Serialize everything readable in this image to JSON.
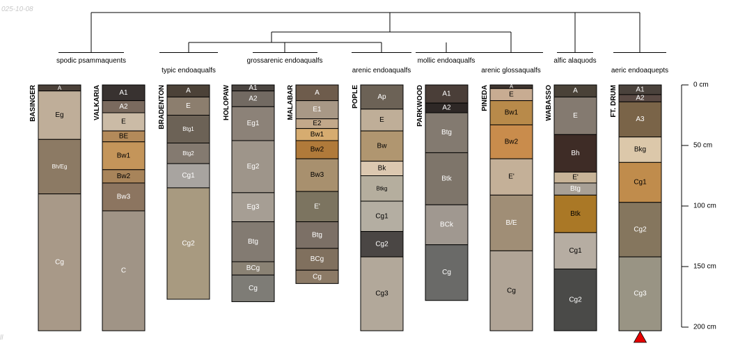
{
  "date_label": "025-10-08",
  "corner_mark": "ll",
  "chart_data": {
    "type": "soil-profile-dendrogram",
    "depth_axis": {
      "unit": "cm",
      "max": 200,
      "ticks": [
        0,
        50,
        100,
        150,
        200
      ],
      "tick_labels": [
        "0 cm",
        "50 cm",
        "100 cm",
        "150 cm",
        "200 cm"
      ]
    },
    "taxa": [
      {
        "label": "spodic psammaquents"
      },
      {
        "label": "typic endoaqualfs"
      },
      {
        "label": "grossarenic endoaqualfs"
      },
      {
        "label": "arenic endoaqualfs"
      },
      {
        "label": "mollic endoaqualfs"
      },
      {
        "label": "arenic glossaqualfs"
      },
      {
        "label": "alfic alaquods"
      },
      {
        "label": "aeric endoaquepts"
      }
    ],
    "profiles": [
      {
        "name": "BASINGER",
        "horizons": [
          {
            "name": "A",
            "top": 0,
            "bottom": 5,
            "color": "#4a4038",
            "text": "#ffffff",
            "small": true
          },
          {
            "name": "Eg",
            "top": 5,
            "bottom": 45,
            "color": "#bfae99",
            "text": "#000000"
          },
          {
            "name": "Bh/Eg",
            "top": 45,
            "bottom": 90,
            "color": "#8c7a64",
            "text": "#ffffff",
            "small": true
          },
          {
            "name": "Cg",
            "top": 90,
            "bottom": 203,
            "color": "#a89988",
            "text": "#ffffff"
          }
        ]
      },
      {
        "name": "VALKARIA",
        "horizons": [
          {
            "name": "A1",
            "top": 0,
            "bottom": 13,
            "color": "#383230",
            "text": "#ffffff"
          },
          {
            "name": "A2",
            "top": 13,
            "bottom": 23,
            "color": "#7a6a5e",
            "text": "#ffffff"
          },
          {
            "name": "E",
            "top": 23,
            "bottom": 38,
            "color": "#cbbba6",
            "text": "#000000"
          },
          {
            "name": "BE",
            "top": 38,
            "bottom": 47,
            "color": "#b38a5a",
            "text": "#000000"
          },
          {
            "name": "Bw1",
            "top": 47,
            "bottom": 70,
            "color": "#c4955a",
            "text": "#000000"
          },
          {
            "name": "Bw2",
            "top": 70,
            "bottom": 81,
            "color": "#a8845a",
            "text": "#000000"
          },
          {
            "name": "Bw3",
            "top": 81,
            "bottom": 104,
            "color": "#8c7560",
            "text": "#ffffff"
          },
          {
            "name": "C",
            "top": 104,
            "bottom": 203,
            "color": "#a09486",
            "text": "#ffffff"
          }
        ]
      },
      {
        "name": "BRADENTON",
        "horizons": [
          {
            "name": "A",
            "top": 0,
            "bottom": 10,
            "color": "#4c4238",
            "text": "#ffffff"
          },
          {
            "name": "E",
            "top": 10,
            "bottom": 25,
            "color": "#8c7e6e",
            "text": "#ffffff"
          },
          {
            "name": "Btg1",
            "top": 25,
            "bottom": 48,
            "color": "#6c6256",
            "text": "#ffffff",
            "small": true
          },
          {
            "name": "Btg2",
            "top": 48,
            "bottom": 65,
            "color": "#847a70",
            "text": "#ffffff",
            "small": true
          },
          {
            "name": "Cg1",
            "top": 65,
            "bottom": 85,
            "color": "#a8a4a0",
            "text": "#ffffff"
          },
          {
            "name": "Cg2",
            "top": 85,
            "bottom": 177,
            "color": "#a89a80",
            "text": "#ffffff"
          }
        ]
      },
      {
        "name": "HOLOPAW",
        "horizons": [
          {
            "name": "A1",
            "top": 0,
            "bottom": 5,
            "color": "#4a4440",
            "text": "#ffffff"
          },
          {
            "name": "A2",
            "top": 5,
            "bottom": 18,
            "color": "#726a62",
            "text": "#ffffff"
          },
          {
            "name": "Eg1",
            "top": 18,
            "bottom": 46,
            "color": "#8c8278",
            "text": "#ffffff"
          },
          {
            "name": "Eg2",
            "top": 46,
            "bottom": 89,
            "color": "#9e958a",
            "text": "#ffffff"
          },
          {
            "name": "Eg3",
            "top": 89,
            "bottom": 113,
            "color": "#a69e94",
            "text": "#ffffff"
          },
          {
            "name": "Btg",
            "top": 113,
            "bottom": 146,
            "color": "#837b72",
            "text": "#ffffff"
          },
          {
            "name": "BCg",
            "top": 146,
            "bottom": 157,
            "color": "#8a8274",
            "text": "#ffffff"
          },
          {
            "name": "Cg",
            "top": 157,
            "bottom": 179,
            "color": "#7e7c76",
            "text": "#ffffff"
          }
        ]
      },
      {
        "name": "MALABAR",
        "horizons": [
          {
            "name": "A",
            "top": 0,
            "bottom": 13,
            "color": "#6e5c4c",
            "text": "#ffffff"
          },
          {
            "name": "E1",
            "top": 13,
            "bottom": 28,
            "color": "#a89886",
            "text": "#ffffff"
          },
          {
            "name": "E2",
            "top": 28,
            "bottom": 36,
            "color": "#c2a88a",
            "text": "#000000"
          },
          {
            "name": "Bw1",
            "top": 36,
            "bottom": 46,
            "color": "#d6ac70",
            "text": "#000000"
          },
          {
            "name": "Bw2",
            "top": 46,
            "bottom": 61,
            "color": "#b07a3a",
            "text": "#000000"
          },
          {
            "name": "Bw3",
            "top": 61,
            "bottom": 88,
            "color": "#a8906e",
            "text": "#000000"
          },
          {
            "name": "E'",
            "top": 88,
            "bottom": 113,
            "color": "#7c7460",
            "text": "#ffffff"
          },
          {
            "name": "Btg",
            "top": 113,
            "bottom": 135,
            "color": "#7c7066",
            "text": "#ffffff"
          },
          {
            "name": "BCg",
            "top": 135,
            "bottom": 153,
            "color": "#80705e",
            "text": "#ffffff"
          },
          {
            "name": "Cg",
            "top": 153,
            "bottom": 164,
            "color": "#8c7a66",
            "text": "#ffffff"
          }
        ]
      },
      {
        "name": "POPLE",
        "horizons": [
          {
            "name": "Ap",
            "top": 0,
            "bottom": 20,
            "color": "#6c6256",
            "text": "#ffffff"
          },
          {
            "name": "E",
            "top": 20,
            "bottom": 38,
            "color": "#bfae98",
            "text": "#000000"
          },
          {
            "name": "Bw",
            "top": 38,
            "bottom": 63,
            "color": "#b09670",
            "text": "#000000"
          },
          {
            "name": "Bk",
            "top": 63,
            "bottom": 75,
            "color": "#dcc8b0",
            "text": "#000000"
          },
          {
            "name": "Btkg",
            "top": 75,
            "bottom": 96,
            "color": "#b5ae9e",
            "text": "#000000",
            "small": true
          },
          {
            "name": "Cg1",
            "top": 96,
            "bottom": 121,
            "color": "#b4aea2",
            "text": "#000000"
          },
          {
            "name": "Cg2",
            "top": 121,
            "bottom": 142,
            "color": "#4a4644",
            "text": "#ffffff"
          },
          {
            "name": "Cg3",
            "top": 142,
            "bottom": 203,
            "color": "#b2a89a",
            "text": "#000000"
          }
        ]
      },
      {
        "name": "PARKWOOD",
        "horizons": [
          {
            "name": "A1",
            "top": 0,
            "bottom": 15,
            "color": "#4a3e38",
            "text": "#ffffff"
          },
          {
            "name": "A2",
            "top": 15,
            "bottom": 23,
            "color": "#2e2826",
            "text": "#ffffff"
          },
          {
            "name": "Btg",
            "top": 23,
            "bottom": 56,
            "color": "#837a70",
            "text": "#ffffff"
          },
          {
            "name": "Btk",
            "top": 56,
            "bottom": 99,
            "color": "#7e756a",
            "text": "#ffffff"
          },
          {
            "name": "BCk",
            "top": 99,
            "bottom": 132,
            "color": "#a09890",
            "text": "#ffffff"
          },
          {
            "name": "Cg",
            "top": 132,
            "bottom": 178,
            "color": "#6a6a68",
            "text": "#ffffff"
          }
        ]
      },
      {
        "name": "PINEDA",
        "horizons": [
          {
            "name": "A",
            "top": 0,
            "bottom": 3,
            "color": "#403630",
            "text": "#ffffff",
            "small": true
          },
          {
            "name": "E",
            "top": 3,
            "bottom": 13,
            "color": "#c8ac92",
            "text": "#000000"
          },
          {
            "name": "Bw1",
            "top": 13,
            "bottom": 33,
            "color": "#b88a4a",
            "text": "#000000"
          },
          {
            "name": "Bw2",
            "top": 33,
            "bottom": 61,
            "color": "#c98c4c",
            "text": "#000000"
          },
          {
            "name": "E'",
            "top": 61,
            "bottom": 91,
            "color": "#c4b098",
            "text": "#000000"
          },
          {
            "name": "B/E",
            "top": 91,
            "bottom": 137,
            "color": "#a08e76",
            "text": "#ffffff"
          },
          {
            "name": "Cg",
            "top": 137,
            "bottom": 203,
            "color": "#b0a496",
            "text": "#000000"
          }
        ]
      },
      {
        "name": "WABASSO",
        "horizons": [
          {
            "name": "A",
            "top": 0,
            "bottom": 10,
            "color": "#4a4238",
            "text": "#ffffff"
          },
          {
            "name": "E",
            "top": 10,
            "bottom": 41,
            "color": "#847a70",
            "text": "#ffffff"
          },
          {
            "name": "Bh",
            "top": 41,
            "bottom": 72,
            "color": "#3e2c26",
            "text": "#ffffff"
          },
          {
            "name": "E'",
            "top": 72,
            "bottom": 81,
            "color": "#c8b498",
            "text": "#000000"
          },
          {
            "name": "Btg",
            "top": 81,
            "bottom": 91,
            "color": "#a8a096",
            "text": "#ffffff"
          },
          {
            "name": "Btk",
            "top": 91,
            "bottom": 122,
            "color": "#aa7826",
            "text": "#000000"
          },
          {
            "name": "Cg1",
            "top": 122,
            "bottom": 152,
            "color": "#b6ada2",
            "text": "#000000"
          },
          {
            "name": "Cg2",
            "top": 152,
            "bottom": 203,
            "color": "#4a4a48",
            "text": "#ffffff"
          }
        ]
      },
      {
        "name": "FT. DRUM",
        "horizons": [
          {
            "name": "A1",
            "top": 0,
            "bottom": 8,
            "color": "#4a423c",
            "text": "#ffffff"
          },
          {
            "name": "A2",
            "top": 8,
            "bottom": 14,
            "color": "#5a4a44",
            "text": "#ffffff"
          },
          {
            "name": "A3",
            "top": 14,
            "bottom": 43,
            "color": "#7a6448",
            "text": "#ffffff"
          },
          {
            "name": "Bkg",
            "top": 43,
            "bottom": 64,
            "color": "#dcc8aa",
            "text": "#000000"
          },
          {
            "name": "Cg1",
            "top": 64,
            "bottom": 97,
            "color": "#c08c4c",
            "text": "#000000"
          },
          {
            "name": "Cg2",
            "top": 97,
            "bottom": 142,
            "color": "#85765e",
            "text": "#ffffff"
          },
          {
            "name": "Cg3",
            "top": 142,
            "bottom": 203,
            "color": "#999484",
            "text": "#ffffff"
          }
        ]
      }
    ],
    "marker": {
      "type": "triangle",
      "profile": "FT. DRUM",
      "color": "#e60000"
    },
    "colors": {
      "line": "#000000",
      "text": "#000000"
    }
  }
}
